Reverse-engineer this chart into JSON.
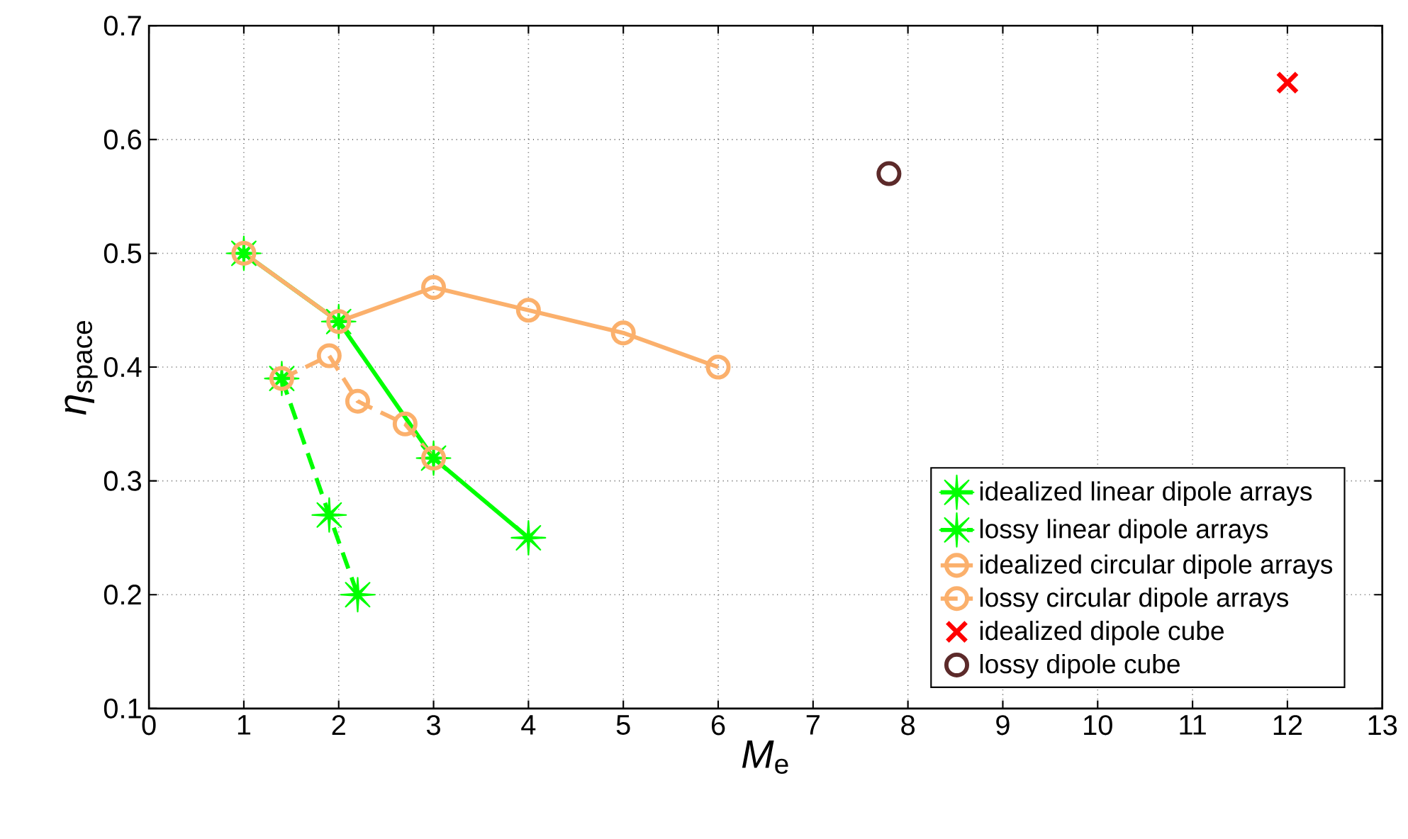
{
  "chart_data": {
    "type": "line",
    "xlabel": "*M*$_{e}$",
    "ylabel": "*η*$_{space}$",
    "xlim": [
      0,
      13
    ],
    "xticks": [
      0,
      1,
      2,
      3,
      4,
      5,
      6,
      7,
      8,
      9,
      10,
      11,
      12,
      13
    ],
    "ylim": [
      0.1,
      0.7
    ],
    "yticks": [
      0.1,
      0.2,
      0.3,
      0.4,
      0.5,
      0.6,
      0.7
    ],
    "grid": true,
    "legend": "bottom right",
    "series": [
      {
        "name": "idealized linear dipole arrays",
        "color": "#00ff00",
        "marker": "star",
        "line_style": "solid",
        "x": [
          1,
          2,
          3,
          4
        ],
        "values": [
          0.5,
          0.44,
          0.32,
          0.25
        ]
      },
      {
        "name": "lossy linear dipole arrays",
        "color": "#00ff00",
        "marker": "star",
        "line_style": "dashed",
        "x": [
          1.4,
          1.9,
          2.2
        ],
        "values": [
          0.39,
          0.27,
          0.2
        ]
      },
      {
        "name": "idealized circular dipole arrays",
        "color": "#fbb06c",
        "marker": "circle",
        "line_style": "solid",
        "x": [
          1,
          2,
          3,
          4,
          5,
          6
        ],
        "values": [
          0.5,
          0.44,
          0.47,
          0.45,
          0.43,
          0.4
        ]
      },
      {
        "name": "lossy circular dipole arrays",
        "color": "#fbb06c",
        "marker": "circle",
        "line_style": "dashed",
        "x": [
          1.4,
          1.9,
          2.2,
          2.7,
          3
        ],
        "values": [
          0.39,
          0.41,
          0.37,
          0.35,
          0.32
        ]
      },
      {
        "name": "idealized dipole cube",
        "type": "scatter",
        "color": "#ff0000",
        "marker": "cross",
        "x": [
          12
        ],
        "values": [
          0.65
        ]
      },
      {
        "name": "lossy dipole cube",
        "type": "scatter",
        "color": "#5c2a2a",
        "marker": "circle",
        "x": [
          7.8
        ],
        "values": [
          0.57
        ]
      }
    ]
  }
}
